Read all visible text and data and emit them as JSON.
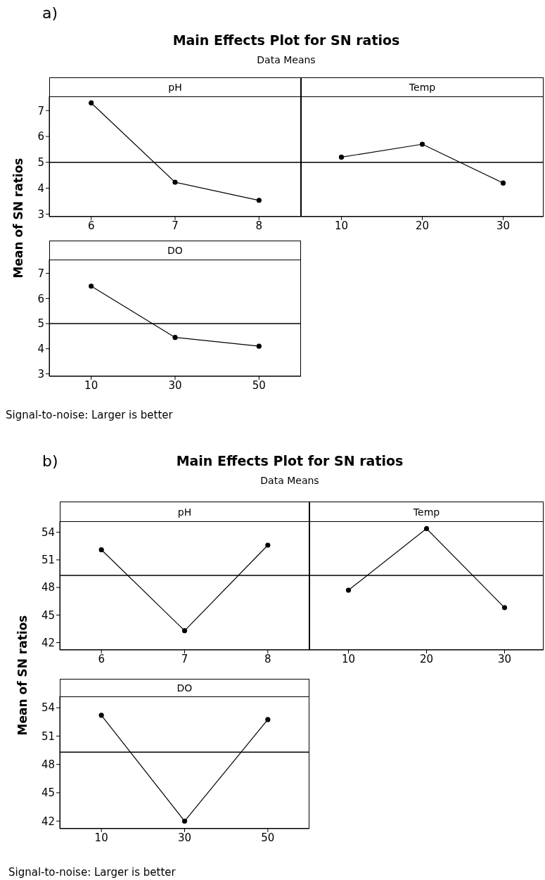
{
  "chart_data": [
    {
      "type": "line",
      "title": "pH",
      "categories": [
        "6",
        "7",
        "8"
      ],
      "series": [
        {
          "color": "#000000",
          "values": [
            7.3,
            4.23,
            3.53
          ]
        }
      ],
      "ylim": [
        2.9,
        7.55
      ],
      "yticks": [
        3,
        4,
        5,
        6,
        7
      ],
      "ref_lines": [
        {
          "axis": "y",
          "value": 5.0,
          "color": "#000000"
        }
      ],
      "marker": "circle",
      "annotations": [
        "a)",
        "Main Effects Plot for SN ratios",
        "Data Means"
      ]
    },
    {
      "type": "line",
      "title": "Temp",
      "categories": [
        "10",
        "20",
        "30"
      ],
      "series": [
        {
          "color": "#000000",
          "values": [
            5.2,
            5.7,
            4.2
          ]
        }
      ],
      "ylim": [
        2.9,
        7.55
      ],
      "yticks": [
        3,
        4,
        5,
        6,
        7
      ],
      "ref_lines": [
        {
          "axis": "y",
          "value": 5.0,
          "color": "#000000"
        }
      ],
      "marker": "circle",
      "tick_labels": "x"
    },
    {
      "type": "line",
      "title": "DO",
      "categories": [
        "10",
        "30",
        "50"
      ],
      "series": [
        {
          "color": "#000000",
          "values": [
            6.49,
            4.45,
            4.1
          ]
        }
      ],
      "ylim": [
        2.9,
        7.55
      ],
      "yticks": [
        3,
        4,
        5,
        6,
        7
      ],
      "ref_lines": [
        {
          "axis": "y",
          "value": 5.0,
          "color": "#000000"
        }
      ],
      "marker": "circle",
      "ylabel": "Mean of SN ratios",
      "annotations": [
        "Signal-to-noise: Larger is better"
      ]
    },
    {
      "type": "line",
      "title": "pH",
      "categories": [
        "6",
        "7",
        "8"
      ],
      "series": [
        {
          "color": "#000000",
          "values": [
            52.1,
            43.3,
            52.6
          ]
        }
      ],
      "ylim": [
        41.2,
        55.2
      ],
      "yticks": [
        42,
        45,
        48,
        51,
        54
      ],
      "ref_lines": [
        {
          "axis": "y",
          "value": 49.3,
          "color": "#000000"
        }
      ],
      "marker": "circle",
      "annotations": [
        "b)",
        "Main Effects Plot for SN ratios",
        "Data Means"
      ]
    },
    {
      "type": "line",
      "title": "Temp",
      "categories": [
        "10",
        "20",
        "30"
      ],
      "series": [
        {
          "color": "#000000",
          "values": [
            47.7,
            54.4,
            45.8
          ]
        }
      ],
      "ylim": [
        41.2,
        55.2
      ],
      "yticks": [
        42,
        45,
        48,
        51,
        54
      ],
      "ref_lines": [
        {
          "axis": "y",
          "value": 49.3,
          "color": "#000000"
        }
      ],
      "marker": "circle",
      "tick_labels": "x"
    },
    {
      "type": "line",
      "title": "DO",
      "categories": [
        "10",
        "30",
        "50"
      ],
      "series": [
        {
          "color": "#000000",
          "values": [
            53.2,
            42.0,
            52.75
          ]
        }
      ],
      "ylim": [
        41.2,
        55.2
      ],
      "yticks": [
        42,
        45,
        48,
        51,
        54
      ],
      "ref_lines": [
        {
          "axis": "y",
          "value": 49.3,
          "color": "#000000"
        }
      ],
      "marker": "circle",
      "ylabel": "Mean of SN ratios",
      "annotations": [
        "Signal-to-noise: Larger is better"
      ]
    }
  ]
}
